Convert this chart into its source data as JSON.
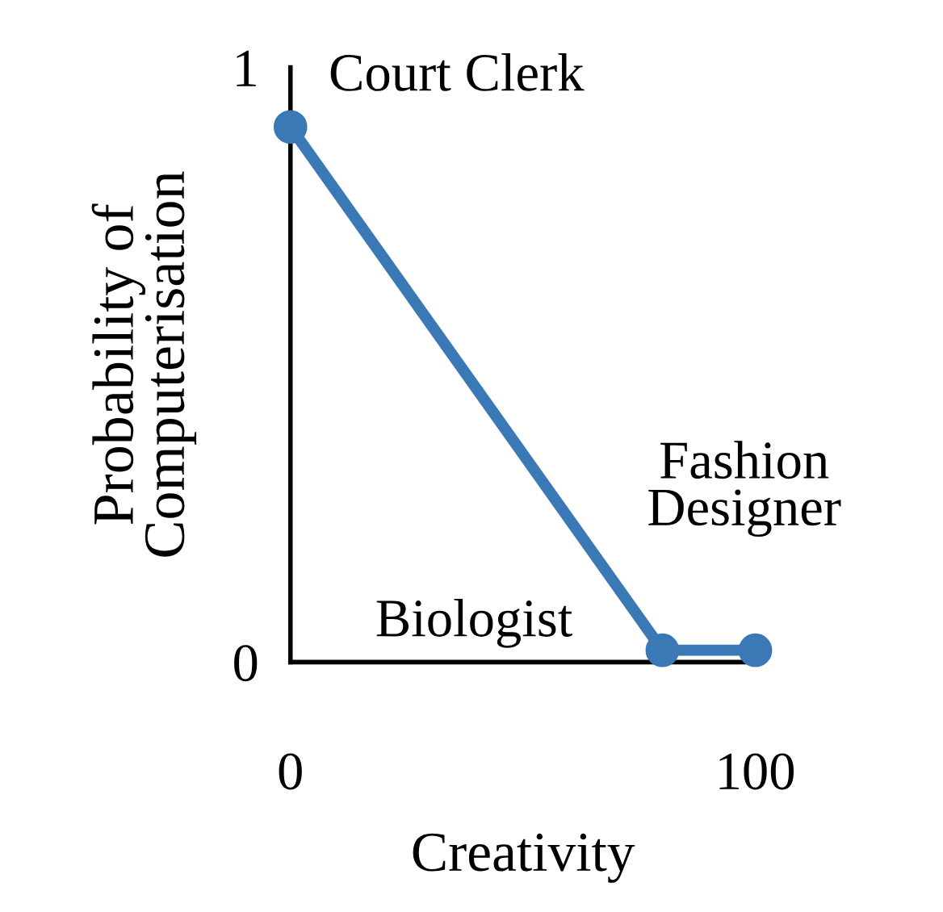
{
  "chart_data": {
    "type": "line",
    "xlabel": "Creativity",
    "ylabel": "Probability of\nComputerisation",
    "x": [
      0,
      80,
      100
    ],
    "series": [
      {
        "color": "#3b78b6",
        "values": [
          0.9,
          0.02,
          0.02
        ]
      }
    ],
    "xlim": [
      0,
      100
    ],
    "ylim": [
      0,
      1
    ],
    "xticks": [
      0,
      100
    ],
    "yticks": [
      0,
      1
    ],
    "marker": "circle",
    "line_style": "solid",
    "grid": false,
    "legend": false,
    "annotations": [
      {
        "text": "Court Clerk",
        "x": 0,
        "y": 0.9
      },
      {
        "text": "Biologist",
        "x": 80,
        "y": 0.02
      },
      {
        "text": "Fashion\nDesigner",
        "x": 100,
        "y": 0.02
      }
    ]
  }
}
